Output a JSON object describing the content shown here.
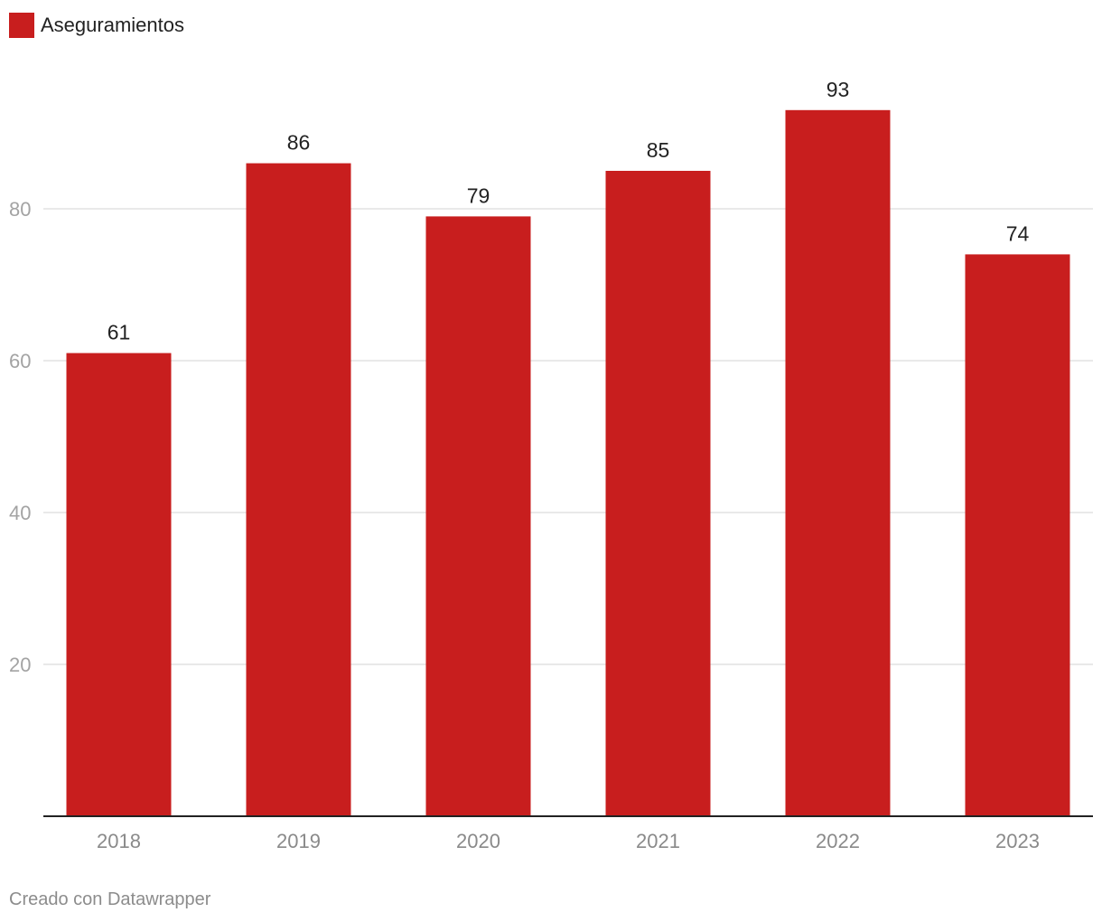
{
  "legend": {
    "label": "Aseguramientos",
    "color": "#c81e1e"
  },
  "footer": {
    "credit": "Creado con Datawrapper"
  },
  "chart_data": {
    "type": "bar",
    "categories": [
      "2018",
      "2019",
      "2020",
      "2021",
      "2022",
      "2023"
    ],
    "series": [
      {
        "name": "Aseguramientos",
        "values": [
          61,
          86,
          79,
          85,
          93,
          74
        ]
      }
    ],
    "data_labels": [
      "61",
      "86",
      "79",
      "85",
      "93",
      "74"
    ],
    "y_ticks": [
      20,
      40,
      60,
      80
    ],
    "ylim": [
      0,
      100
    ],
    "grid": true,
    "legend_position": "top-left",
    "bar_color": "#c81e1e"
  }
}
